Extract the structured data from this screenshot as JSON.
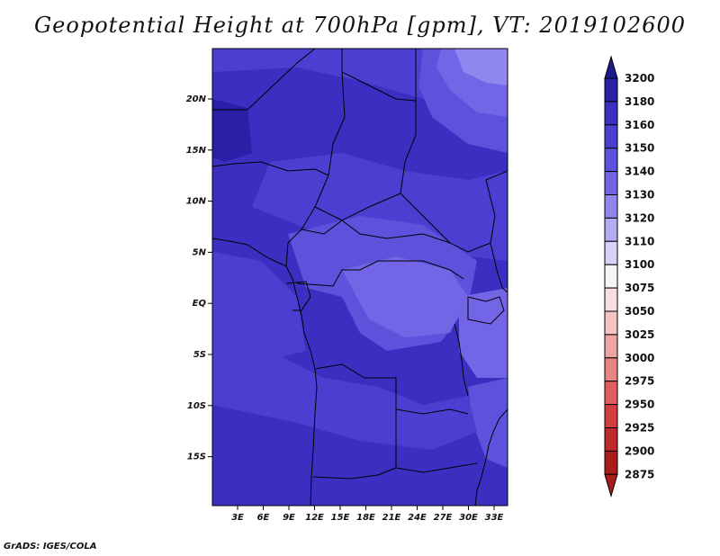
{
  "title": "Geopotential Height at 700hPa [gpm], VT: 2019102600",
  "credit": "GrADS: IGES/COLA",
  "map": {
    "lat_labels": [
      "20N",
      "15N",
      "10N",
      "5N",
      "EQ",
      "5S",
      "10S",
      "15S"
    ],
    "lon_labels": [
      "3E",
      "6E",
      "9E",
      "12E",
      "15E",
      "18E",
      "21E",
      "24E",
      "27E",
      "30E",
      "33E"
    ]
  },
  "colorbar": {
    "levels": [
      "3200",
      "3180",
      "3160",
      "3150",
      "3140",
      "3130",
      "3120",
      "3110",
      "3100",
      "3075",
      "3050",
      "3025",
      "3000",
      "2975",
      "2950",
      "2925",
      "2900",
      "2875"
    ],
    "colors": [
      "#1e1a8c",
      "#2a20a8",
      "#3a2fc0",
      "#4a3fd0",
      "#5c52dc",
      "#7366e6",
      "#8f86ee",
      "#b3abf4",
      "#d6d2f8",
      "#f6f4f4",
      "#f8dede",
      "#f4c4c4",
      "#eea4a4",
      "#e88484",
      "#e05e5e",
      "#d43e3e",
      "#c02a2a",
      "#a81c1c"
    ]
  },
  "field_colors": {
    "dark": "#3a2fc0",
    "mid": "#4a3fd0",
    "light": "#5c52dc",
    "lighter": "#7366e6",
    "pale": "#8f86ee",
    "border": "#000000"
  }
}
